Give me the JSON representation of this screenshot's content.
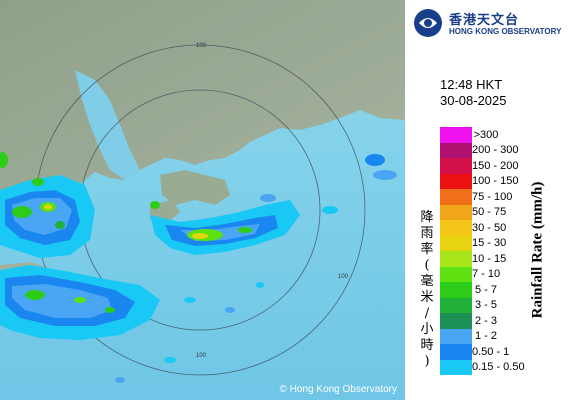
{
  "map": {
    "copyright": "© Hong Kong Observatory",
    "range_rings": [
      "100",
      "100",
      "100",
      "100"
    ]
  },
  "logo": {
    "chinese": "香港天文台",
    "english": "HONG KONG OBSERVATORY"
  },
  "timestamp": {
    "time": "12:48 HKT",
    "date": "30-08-2025"
  },
  "legend": {
    "title_en": "Rainfall Rate (mm/h)",
    "title_cn": "降雨率(毫米/小時)",
    "entries": [
      {
        "label": ">300",
        "color": "#ee11ee"
      },
      {
        "label": "200 - 300",
        "color": "#b0106f"
      },
      {
        "label": "150 - 200",
        "color": "#d4104a"
      },
      {
        "label": "100 - 150",
        "color": "#ee1111"
      },
      {
        "label": "75 - 100",
        "color": "#f0701a"
      },
      {
        "label": "50 - 75",
        "color": "#f0a51a"
      },
      {
        "label": "30 - 50",
        "color": "#f5c518"
      },
      {
        "label": "15 - 30",
        "color": "#e6d411"
      },
      {
        "label": "10 - 15",
        "color": "#a8e61a"
      },
      {
        "label": "7 - 10",
        "color": "#5fe010"
      },
      {
        "label": "5 - 7",
        "color": "#2ecc1a"
      },
      {
        "label": "3 - 5",
        "color": "#22b03a"
      },
      {
        "label": "2 - 3",
        "color": "#1c8f55"
      },
      {
        "label": "1 - 2",
        "color": "#4aa6f5"
      },
      {
        "label": "0.50 - 1",
        "color": "#1a86f0"
      },
      {
        "label": "0.15 - 0.50",
        "color": "#19c8f5"
      }
    ]
  }
}
